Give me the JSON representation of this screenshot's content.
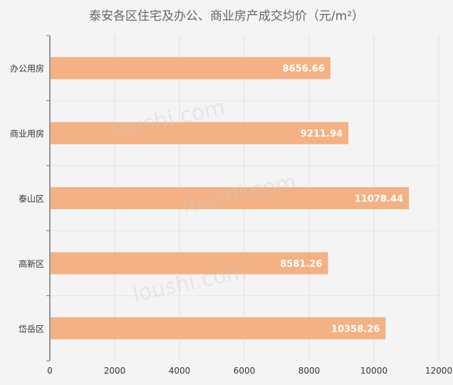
{
  "chart_data": {
    "type": "bar",
    "orientation": "horizontal",
    "title": "泰安各区住宅及办公、商业房产成交均价（元/m²）",
    "categories": [
      "办公用房",
      "商业用房",
      "泰山区",
      "高新区",
      "岱岳区"
    ],
    "values": [
      8656.66,
      9211.94,
      11078.44,
      8581.26,
      10358.26
    ],
    "value_labels": [
      "8656.66",
      "9211.94",
      "11078.44",
      "8581.26",
      "10358.26"
    ],
    "xlim": [
      0,
      12000
    ],
    "xticks": [
      "0",
      "2000",
      "4000",
      "6000",
      "8000",
      "10000",
      "12000"
    ],
    "grid": true,
    "bar_color": "#f4b183",
    "label_color": "#ffffff",
    "watermark": "loushi.com"
  }
}
